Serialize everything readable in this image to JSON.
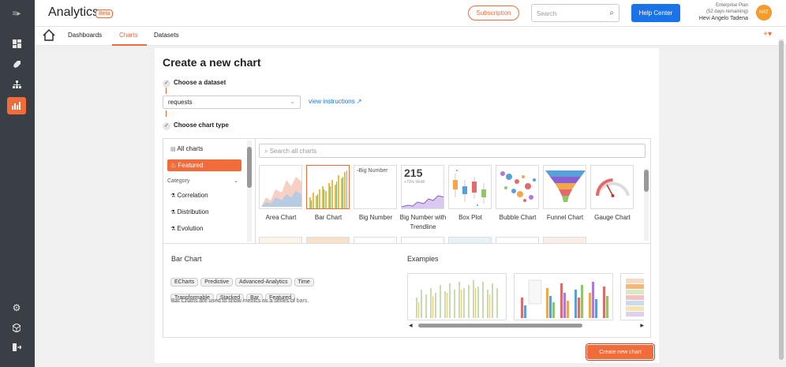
{
  "header": {
    "title": "Analytics",
    "badge": "Beta",
    "subscription_label": "Subscription",
    "search_placeholder": "Search",
    "help_label": "Help Center",
    "plan_name": "Enterprise Plan",
    "plan_days": "(52 days remaining)",
    "user_name": "Hevi Angelo Tadena",
    "avatar_initials": "HAT"
  },
  "nav": {
    "tabs": [
      {
        "label": "Dashboards"
      },
      {
        "label": "Charts",
        "active": true
      },
      {
        "label": "Datasets"
      }
    ]
  },
  "page": {
    "title": "Create a new chart",
    "step1_label": "Choose a dataset",
    "dataset_value": "requests",
    "view_instructions": "view instructions",
    "step2_label": "Choose chart type"
  },
  "picker": {
    "all_charts": "All charts",
    "featured": "Featured",
    "category_label": "Category",
    "categories": [
      "Correlation",
      "Distribution",
      "Evolution"
    ],
    "search_placeholder": "Search all charts",
    "charts": [
      {
        "label": "Area Chart"
      },
      {
        "label": "Bar Chart",
        "selected": true
      },
      {
        "label": "Big Number",
        "alt": "Big Number"
      },
      {
        "label": "Big Number with Trendline",
        "value": "215",
        "sub": "+70% WoW"
      },
      {
        "label": "Box Plot"
      },
      {
        "label": "Bubble Chart"
      },
      {
        "label": "Funnel Chart"
      },
      {
        "label": "Gauge Chart"
      }
    ]
  },
  "details": {
    "title": "Bar Chart",
    "tags": [
      "ECharts",
      "Predictive",
      "Advanced-Analytics",
      "Time",
      "Transformable",
      "Stacked",
      "Bar",
      "Featured"
    ],
    "description": "Bar Charts are used to show metrics as a series of bars.",
    "examples_title": "Examples"
  },
  "create_button": "Create new chart",
  "colors": {
    "accent": "#f26b3a",
    "primary": "#1a73e8",
    "rail": "#3a3f45"
  }
}
